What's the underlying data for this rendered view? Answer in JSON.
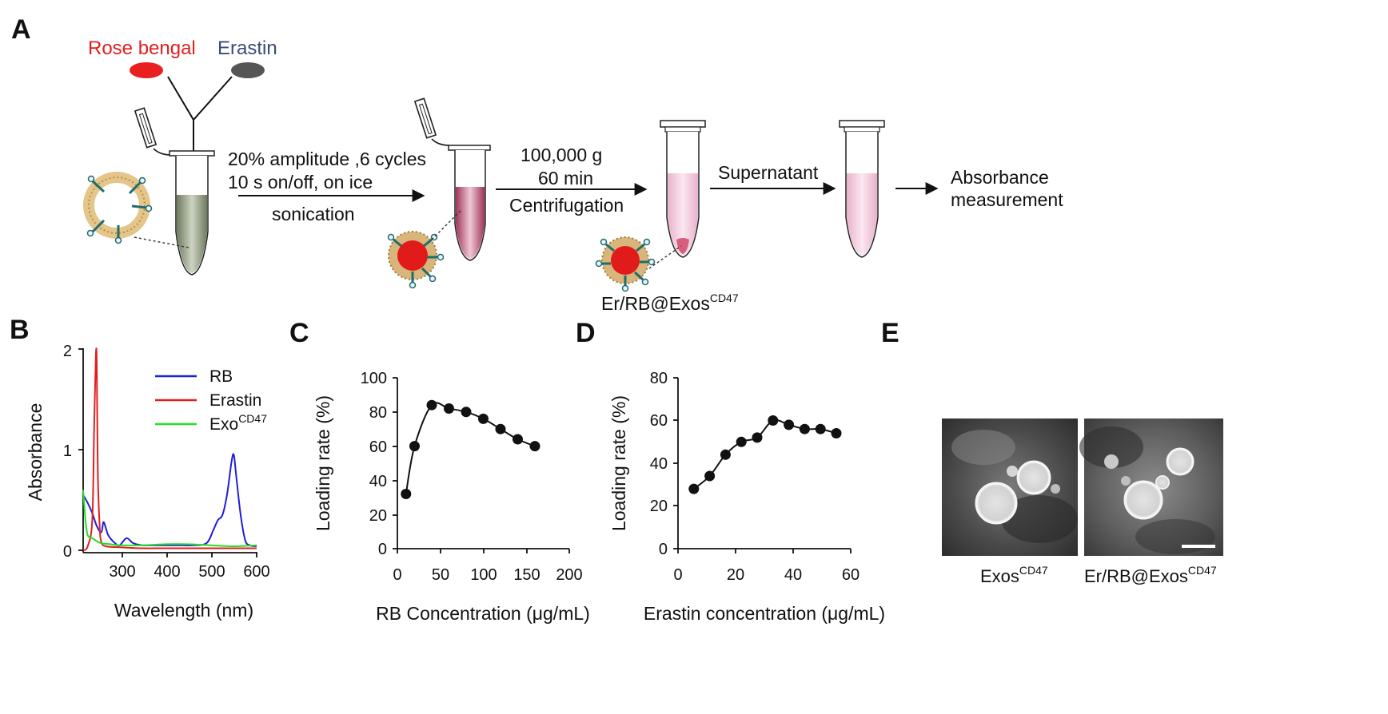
{
  "panels": {
    "a": "A",
    "b": "B",
    "c": "C",
    "d": "D",
    "e": "E"
  },
  "panel_a": {
    "reagent_1": "Rose bengal",
    "reagent_2": "Erastin",
    "step1_line1": "20% amplitude ,6 cycles",
    "step1_line2": "10 s on/off, on ice",
    "step1_label": "sonication",
    "step2_line1": "100,000 g",
    "step2_line2": "60 min",
    "step2_label": "Centrifugation",
    "step3_label": "Supernatant",
    "step4_line1": "Absorbance",
    "step4_line2": "measurement",
    "product_base": "Er/RB@Exos",
    "product_sup": "CD47",
    "colors": {
      "rose_bengal": "#e8201f",
      "erastin": "#555555",
      "tube_initial": "#8e9a80",
      "tube_loaded": "#c0506e",
      "tube_pink": "#f2c6dc"
    }
  },
  "chart_data": [
    {
      "panel": "B",
      "type": "line",
      "xlabel": "Wavelength (nm)",
      "ylabel": "Absorbance",
      "xlim": [
        220,
        600
      ],
      "ylim": [
        0,
        2
      ],
      "xticks": [
        "300",
        "400",
        "500",
        "600"
      ],
      "yticks": [
        "0",
        "1",
        "2"
      ],
      "legend_position": "top-right",
      "series": [
        {
          "name": "RB",
          "color": "#1f1fd6",
          "x": [
            220,
            230,
            240,
            250,
            260,
            265,
            275,
            290,
            300,
            315,
            330,
            350,
            380,
            420,
            460,
            490,
            505,
            515,
            525,
            535,
            545,
            550,
            555,
            565,
            575,
            585,
            600
          ],
          "y": [
            0.55,
            0.47,
            0.37,
            0.24,
            0.18,
            0.28,
            0.15,
            0.07,
            0.05,
            0.12,
            0.07,
            0.05,
            0.05,
            0.05,
            0.05,
            0.07,
            0.2,
            0.3,
            0.35,
            0.55,
            0.88,
            0.95,
            0.75,
            0.35,
            0.1,
            0.05,
            0.04
          ]
        },
        {
          "name": "Erastin",
          "color": "#e0201f",
          "x": [
            220,
            230,
            240,
            244,
            248,
            250,
            252,
            256,
            260,
            270,
            300,
            350,
            400,
            500,
            600
          ],
          "y": [
            0.0,
            0.04,
            0.3,
            1.2,
            1.96,
            1.8,
            0.8,
            0.25,
            0.08,
            0.04,
            0.03,
            0.02,
            0.02,
            0.02,
            0.02
          ]
        },
        {
          "name": "Exo",
          "name_sup": "CD47",
          "color": "#22e022",
          "x": [
            220,
            225,
            230,
            240,
            250,
            260,
            280,
            300,
            350,
            400,
            450,
            500,
            550,
            600
          ],
          "y": [
            0.6,
            0.3,
            0.15,
            0.12,
            0.09,
            0.07,
            0.06,
            0.05,
            0.05,
            0.06,
            0.06,
            0.05,
            0.04,
            0.05
          ]
        }
      ]
    },
    {
      "panel": "C",
      "type": "scatter",
      "xlabel": "RB Concentration (μg/mL)",
      "ylabel": "Loading rate (%)",
      "xlim": [
        0,
        200
      ],
      "ylim": [
        0,
        100
      ],
      "xticks": [
        "0",
        "50",
        "100",
        "150",
        "200"
      ],
      "yticks": [
        "0",
        "20",
        "40",
        "60",
        "80",
        "100"
      ],
      "x": [
        10,
        20,
        40,
        60,
        80,
        100,
        120,
        140,
        160
      ],
      "y": [
        32,
        60,
        84,
        82,
        80,
        76,
        70,
        64,
        60
      ]
    },
    {
      "panel": "D",
      "type": "scatter",
      "xlabel": "Erastin concentration (μg/mL)",
      "ylabel": "Loading rate (%)",
      "xlim": [
        0,
        60
      ],
      "ylim": [
        0,
        80
      ],
      "xticks": [
        "0",
        "20",
        "40",
        "60"
      ],
      "yticks": [
        "0",
        "20",
        "40",
        "60",
        "80"
      ],
      "x": [
        5.5,
        11,
        16.5,
        22,
        27.5,
        33,
        38.5,
        44,
        49.5,
        55
      ],
      "y": [
        28,
        34,
        44,
        50,
        52,
        60,
        58,
        56,
        56,
        54
      ]
    }
  ],
  "panel_e": {
    "caption_left_base": "Exos",
    "caption_left_sup": "CD47",
    "caption_right_base": "Er/RB@Exos",
    "caption_right_sup": "CD47"
  }
}
